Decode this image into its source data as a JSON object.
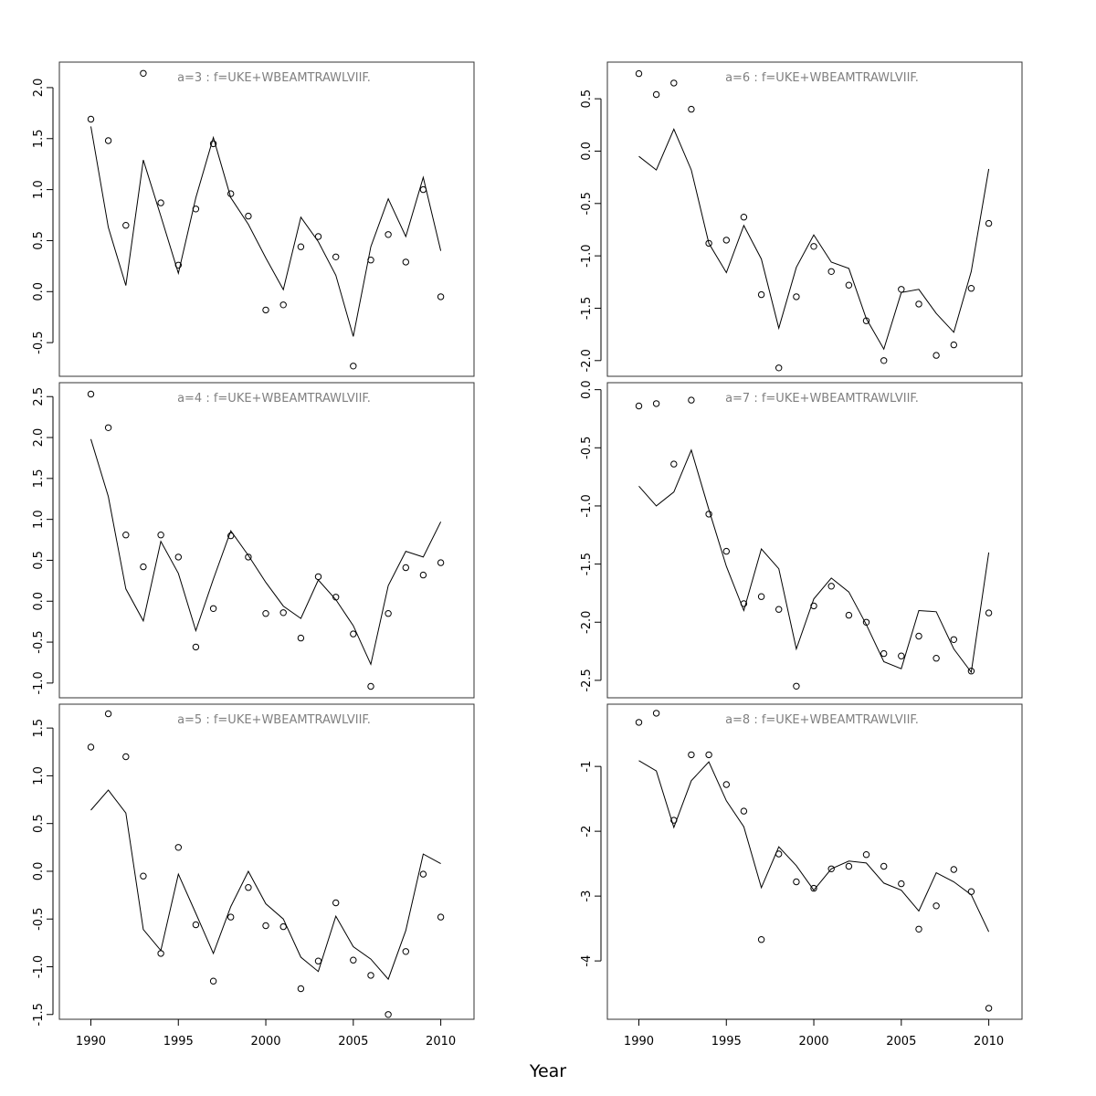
{
  "xlabel": "Year",
  "chart_data": [
    {
      "type": "line",
      "title": "a=3  :  f=UKE+WBEAMTRAWLVIIF.",
      "xlim": [
        1988.2,
        2011.9
      ],
      "ylim": [
        -0.83,
        2.25
      ],
      "yticks": [
        "-0.5",
        "0.0",
        "0.5",
        "1.0",
        "1.5",
        "2.0"
      ],
      "xticks": [
        "1990",
        "1995",
        "2000",
        "2005",
        "2010"
      ],
      "x": [
        1990,
        1991,
        1992,
        1993,
        1994,
        1995,
        1996,
        1997,
        1998,
        1999,
        2000,
        2001,
        2002,
        2003,
        2004,
        2005,
        2006,
        2007,
        2008,
        2009,
        2010
      ],
      "series": [
        {
          "style": "line",
          "values": [
            1.62,
            0.63,
            0.06,
            1.29,
            0.74,
            0.18,
            0.92,
            1.51,
            0.92,
            0.66,
            0.33,
            0.02,
            0.73,
            0.49,
            0.16,
            -0.44,
            0.44,
            0.91,
            0.54,
            1.12,
            0.4
          ]
        },
        {
          "style": "points",
          "values": [
            1.69,
            1.48,
            0.65,
            2.14,
            0.87,
            0.26,
            0.81,
            1.45,
            0.96,
            0.74,
            -0.18,
            -0.13,
            0.44,
            0.54,
            0.34,
            -0.73,
            0.31,
            0.56,
            0.29,
            1.0,
            -0.05
          ]
        }
      ]
    },
    {
      "type": "line",
      "title": "a=6  :  f=UKE+WBEAMTRAWLVIIF.",
      "xlim": [
        1988.2,
        2011.9
      ],
      "ylim": [
        -2.15,
        0.85
      ],
      "yticks": [
        "-2.0",
        "-1.5",
        "-1.0",
        "-0.5",
        "0.0",
        "0.5"
      ],
      "xticks": [
        "1990",
        "1995",
        "2000",
        "2005",
        "2010"
      ],
      "x": [
        1990,
        1991,
        1992,
        1993,
        1994,
        1995,
        1996,
        1997,
        1998,
        1999,
        2000,
        2001,
        2002,
        2003,
        2004,
        2005,
        2006,
        2007,
        2008,
        2009,
        2010
      ],
      "series": [
        {
          "style": "line",
          "values": [
            -0.05,
            -0.18,
            0.21,
            -0.18,
            -0.88,
            -1.16,
            -0.71,
            -1.03,
            -1.69,
            -1.11,
            -0.8,
            -1.06,
            -1.12,
            -1.6,
            -1.89,
            -1.35,
            -1.32,
            -1.55,
            -1.73,
            -1.15,
            -0.17
          ]
        },
        {
          "style": "points",
          "values": [
            0.74,
            0.54,
            0.65,
            0.4,
            -0.88,
            -0.85,
            -0.63,
            -1.37,
            -2.07,
            -1.39,
            -0.91,
            -1.15,
            -1.28,
            -1.62,
            -2.0,
            -1.32,
            -1.46,
            -1.95,
            -1.85,
            -1.31,
            -0.69
          ]
        }
      ]
    },
    {
      "type": "line",
      "title": "a=4  :  f=UKE+WBEAMTRAWLVIIF.",
      "xlim": [
        1988.2,
        2011.9
      ],
      "ylim": [
        -1.18,
        2.67
      ],
      "yticks": [
        "-1.0",
        "-0.5",
        "0.0",
        "0.5",
        "1.0",
        "1.5",
        "2.0",
        "2.5"
      ],
      "xticks": [
        "1990",
        "1995",
        "2000",
        "2005",
        "2010"
      ],
      "x": [
        1990,
        1991,
        1992,
        1993,
        1994,
        1995,
        1996,
        1997,
        1998,
        1999,
        2000,
        2001,
        2002,
        2003,
        2004,
        2005,
        2006,
        2007,
        2008,
        2009,
        2010
      ],
      "series": [
        {
          "style": "line",
          "values": [
            1.98,
            1.28,
            0.15,
            -0.24,
            0.73,
            0.34,
            -0.36,
            0.27,
            0.86,
            0.56,
            0.23,
            -0.06,
            -0.21,
            0.26,
            0.02,
            -0.3,
            -0.77,
            0.19,
            0.61,
            0.54,
            0.97
          ]
        },
        {
          "style": "points",
          "values": [
            2.53,
            2.12,
            0.81,
            0.42,
            0.81,
            0.54,
            -0.56,
            -0.09,
            0.8,
            0.54,
            -0.15,
            -0.14,
            -0.45,
            0.3,
            0.05,
            -0.4,
            -1.04,
            -0.15,
            0.41,
            0.32,
            0.47
          ]
        }
      ]
    },
    {
      "type": "line",
      "title": "a=7  :  f=UKE+WBEAMTRAWLVIIF.",
      "xlim": [
        1988.2,
        2011.9
      ],
      "ylim": [
        -2.65,
        0.06
      ],
      "yticks": [
        "-2.5",
        "-2.0",
        "-1.5",
        "-1.0",
        "-0.5",
        "0.0"
      ],
      "xticks": [
        "1990",
        "1995",
        "2000",
        "2005",
        "2010"
      ],
      "x": [
        1990,
        1991,
        1992,
        1993,
        1994,
        1995,
        1996,
        1997,
        1998,
        1999,
        2000,
        2001,
        2002,
        2003,
        2004,
        2005,
        2006,
        2007,
        2008,
        2009,
        2010
      ],
      "series": [
        {
          "style": "line",
          "values": [
            -0.83,
            -1.0,
            -0.88,
            -0.52,
            -1.03,
            -1.52,
            -1.9,
            -1.37,
            -1.54,
            -2.23,
            -1.8,
            -1.62,
            -1.74,
            -2.02,
            -2.34,
            -2.4,
            -1.9,
            -1.91,
            -2.23,
            -2.43,
            -1.4
          ]
        },
        {
          "style": "points",
          "values": [
            -0.14,
            -0.12,
            -0.64,
            -0.09,
            -1.07,
            -1.39,
            -1.84,
            -1.78,
            -1.89,
            -2.55,
            -1.86,
            -1.69,
            -1.94,
            -2.0,
            -2.27,
            -2.29,
            -2.12,
            -2.31,
            -2.15,
            -2.42,
            -1.92
          ]
        }
      ]
    },
    {
      "type": "line",
      "title": "a=5  :  f=UKE+WBEAMTRAWLVIIF.",
      "xlim": [
        1988.2,
        2011.9
      ],
      "ylim": [
        -1.55,
        1.75
      ],
      "yticks": [
        "-1.5",
        "-1.0",
        "-0.5",
        "0.0",
        "0.5",
        "1.0",
        "1.5"
      ],
      "xticks": [
        "1990",
        "1995",
        "2000",
        "2005",
        "2010"
      ],
      "x": [
        1990,
        1991,
        1992,
        1993,
        1994,
        1995,
        1996,
        1997,
        1998,
        1999,
        2000,
        2001,
        2002,
        2003,
        2004,
        2005,
        2006,
        2007,
        2008,
        2009,
        2010
      ],
      "series": [
        {
          "style": "line",
          "values": [
            0.64,
            0.85,
            0.61,
            -0.61,
            -0.83,
            -0.03,
            -0.44,
            -0.86,
            -0.37,
            0.0,
            -0.34,
            -0.5,
            -0.9,
            -1.05,
            -0.47,
            -0.79,
            -0.92,
            -1.13,
            -0.62,
            0.18,
            0.08
          ]
        },
        {
          "style": "points",
          "values": [
            1.3,
            1.65,
            1.2,
            -0.05,
            -0.86,
            0.25,
            -0.56,
            -1.15,
            -0.48,
            -0.17,
            -0.57,
            -0.58,
            -1.23,
            -0.94,
            -0.33,
            -0.93,
            -1.09,
            -1.5,
            -0.84,
            -0.03,
            -0.48
          ]
        }
      ]
    },
    {
      "type": "line",
      "title": "a=8  :  f=UKE+WBEAMTRAWLVIIF.",
      "xlim": [
        1988.2,
        2011.9
      ],
      "ylim": [
        -4.9,
        -0.04
      ],
      "yticks": [
        "-4",
        "-3",
        "-2",
        "-1"
      ],
      "xticks": [
        "1990",
        "1995",
        "2000",
        "2005",
        "2010"
      ],
      "x": [
        1990,
        1991,
        1992,
        1993,
        1994,
        1995,
        1996,
        1997,
        1998,
        1999,
        2000,
        2001,
        2002,
        2003,
        2004,
        2005,
        2006,
        2007,
        2008,
        2009,
        2010
      ],
      "series": [
        {
          "style": "line",
          "values": [
            -0.91,
            -1.07,
            -1.94,
            -1.22,
            -0.93,
            -1.53,
            -1.93,
            -2.87,
            -2.24,
            -2.53,
            -2.91,
            -2.58,
            -2.46,
            -2.49,
            -2.8,
            -2.91,
            -3.23,
            -2.64,
            -2.78,
            -2.98,
            -3.55
          ]
        },
        {
          "style": "points",
          "values": [
            -0.32,
            -0.18,
            -1.83,
            -0.82,
            -0.82,
            -1.28,
            -1.69,
            -3.67,
            -2.35,
            -2.78,
            -2.88,
            -2.58,
            -2.54,
            -2.36,
            -2.54,
            -2.81,
            -3.51,
            -3.15,
            -2.59,
            -2.93,
            -4.73
          ]
        }
      ]
    }
  ]
}
